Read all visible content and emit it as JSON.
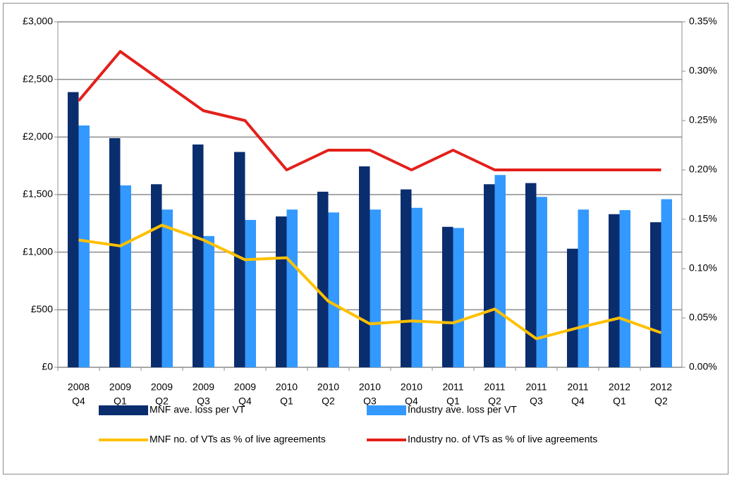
{
  "chart_data": {
    "type": "bar",
    "categories": [
      [
        "2008",
        "Q4"
      ],
      [
        "2009",
        "Q1"
      ],
      [
        "2009",
        "Q2"
      ],
      [
        "2009",
        "Q3"
      ],
      [
        "2009",
        "Q4"
      ],
      [
        "2010",
        "Q1"
      ],
      [
        "2010",
        "Q2"
      ],
      [
        "2010",
        "Q3"
      ],
      [
        "2010",
        "Q4"
      ],
      [
        "2011",
        "Q1"
      ],
      [
        "2011",
        "Q2"
      ],
      [
        "2011",
        "Q3"
      ],
      [
        "2011",
        "Q4"
      ],
      [
        "2012",
        "Q1"
      ],
      [
        "2012",
        "Q2"
      ]
    ],
    "series": [
      {
        "name": "MNF ave. loss per VT",
        "type": "bar",
        "color": "#0a2d6e",
        "values": [
          2390,
          1990,
          1590,
          1935,
          1870,
          1310,
          1525,
          1745,
          1545,
          1220,
          1590,
          1600,
          1030,
          1330,
          1260
        ]
      },
      {
        "name": "Industry ave. loss per VT",
        "type": "bar",
        "color": "#3399ff",
        "values": [
          2100,
          1580,
          1370,
          1140,
          1280,
          1370,
          1345,
          1370,
          1385,
          1210,
          1670,
          1480,
          1370,
          1365,
          1460
        ]
      },
      {
        "name": "MNF no. of VTs as % of live agreements",
        "type": "line",
        "axis": "y2",
        "color": "#ffc000",
        "values": [
          0.129,
          0.123,
          0.144,
          0.129,
          0.109,
          0.111,
          0.067,
          0.044,
          0.047,
          0.045,
          0.059,
          0.029,
          0.04,
          0.05,
          0.035
        ]
      },
      {
        "name": "Industry no. of VTs  as % of live agreements",
        "type": "line",
        "axis": "y2",
        "color": "#e3201b",
        "values": [
          0.27,
          0.32,
          0.29,
          0.26,
          0.25,
          0.2,
          0.22,
          0.22,
          0.2,
          0.22,
          0.2,
          0.2,
          0.2,
          0.2,
          0.2
        ]
      }
    ],
    "ylim": [
      0,
      3000
    ],
    "yticks": [
      {
        "value": 0,
        "label": "£0"
      },
      {
        "value": 500,
        "label": "£500"
      },
      {
        "value": 1000,
        "label": "£1,000"
      },
      {
        "value": 1500,
        "label": "£1,500"
      },
      {
        "value": 2000,
        "label": "£2,000"
      },
      {
        "value": 2500,
        "label": "£2,500"
      },
      {
        "value": 3000,
        "label": "£3,000"
      }
    ],
    "y2lim": [
      0,
      0.35
    ],
    "y2ticks": [
      {
        "value": 0,
        "label": "0.00%"
      },
      {
        "value": 0.05,
        "label": "0.05%"
      },
      {
        "value": 0.1,
        "label": "0.10%"
      },
      {
        "value": 0.15,
        "label": "0.15%"
      },
      {
        "value": 0.2,
        "label": "0.20%"
      },
      {
        "value": 0.25,
        "label": "0.25%"
      },
      {
        "value": 0.3,
        "label": "0.30%"
      },
      {
        "value": 0.35,
        "label": "0.35%"
      }
    ],
    "grid": true,
    "legend": "bottom"
  }
}
